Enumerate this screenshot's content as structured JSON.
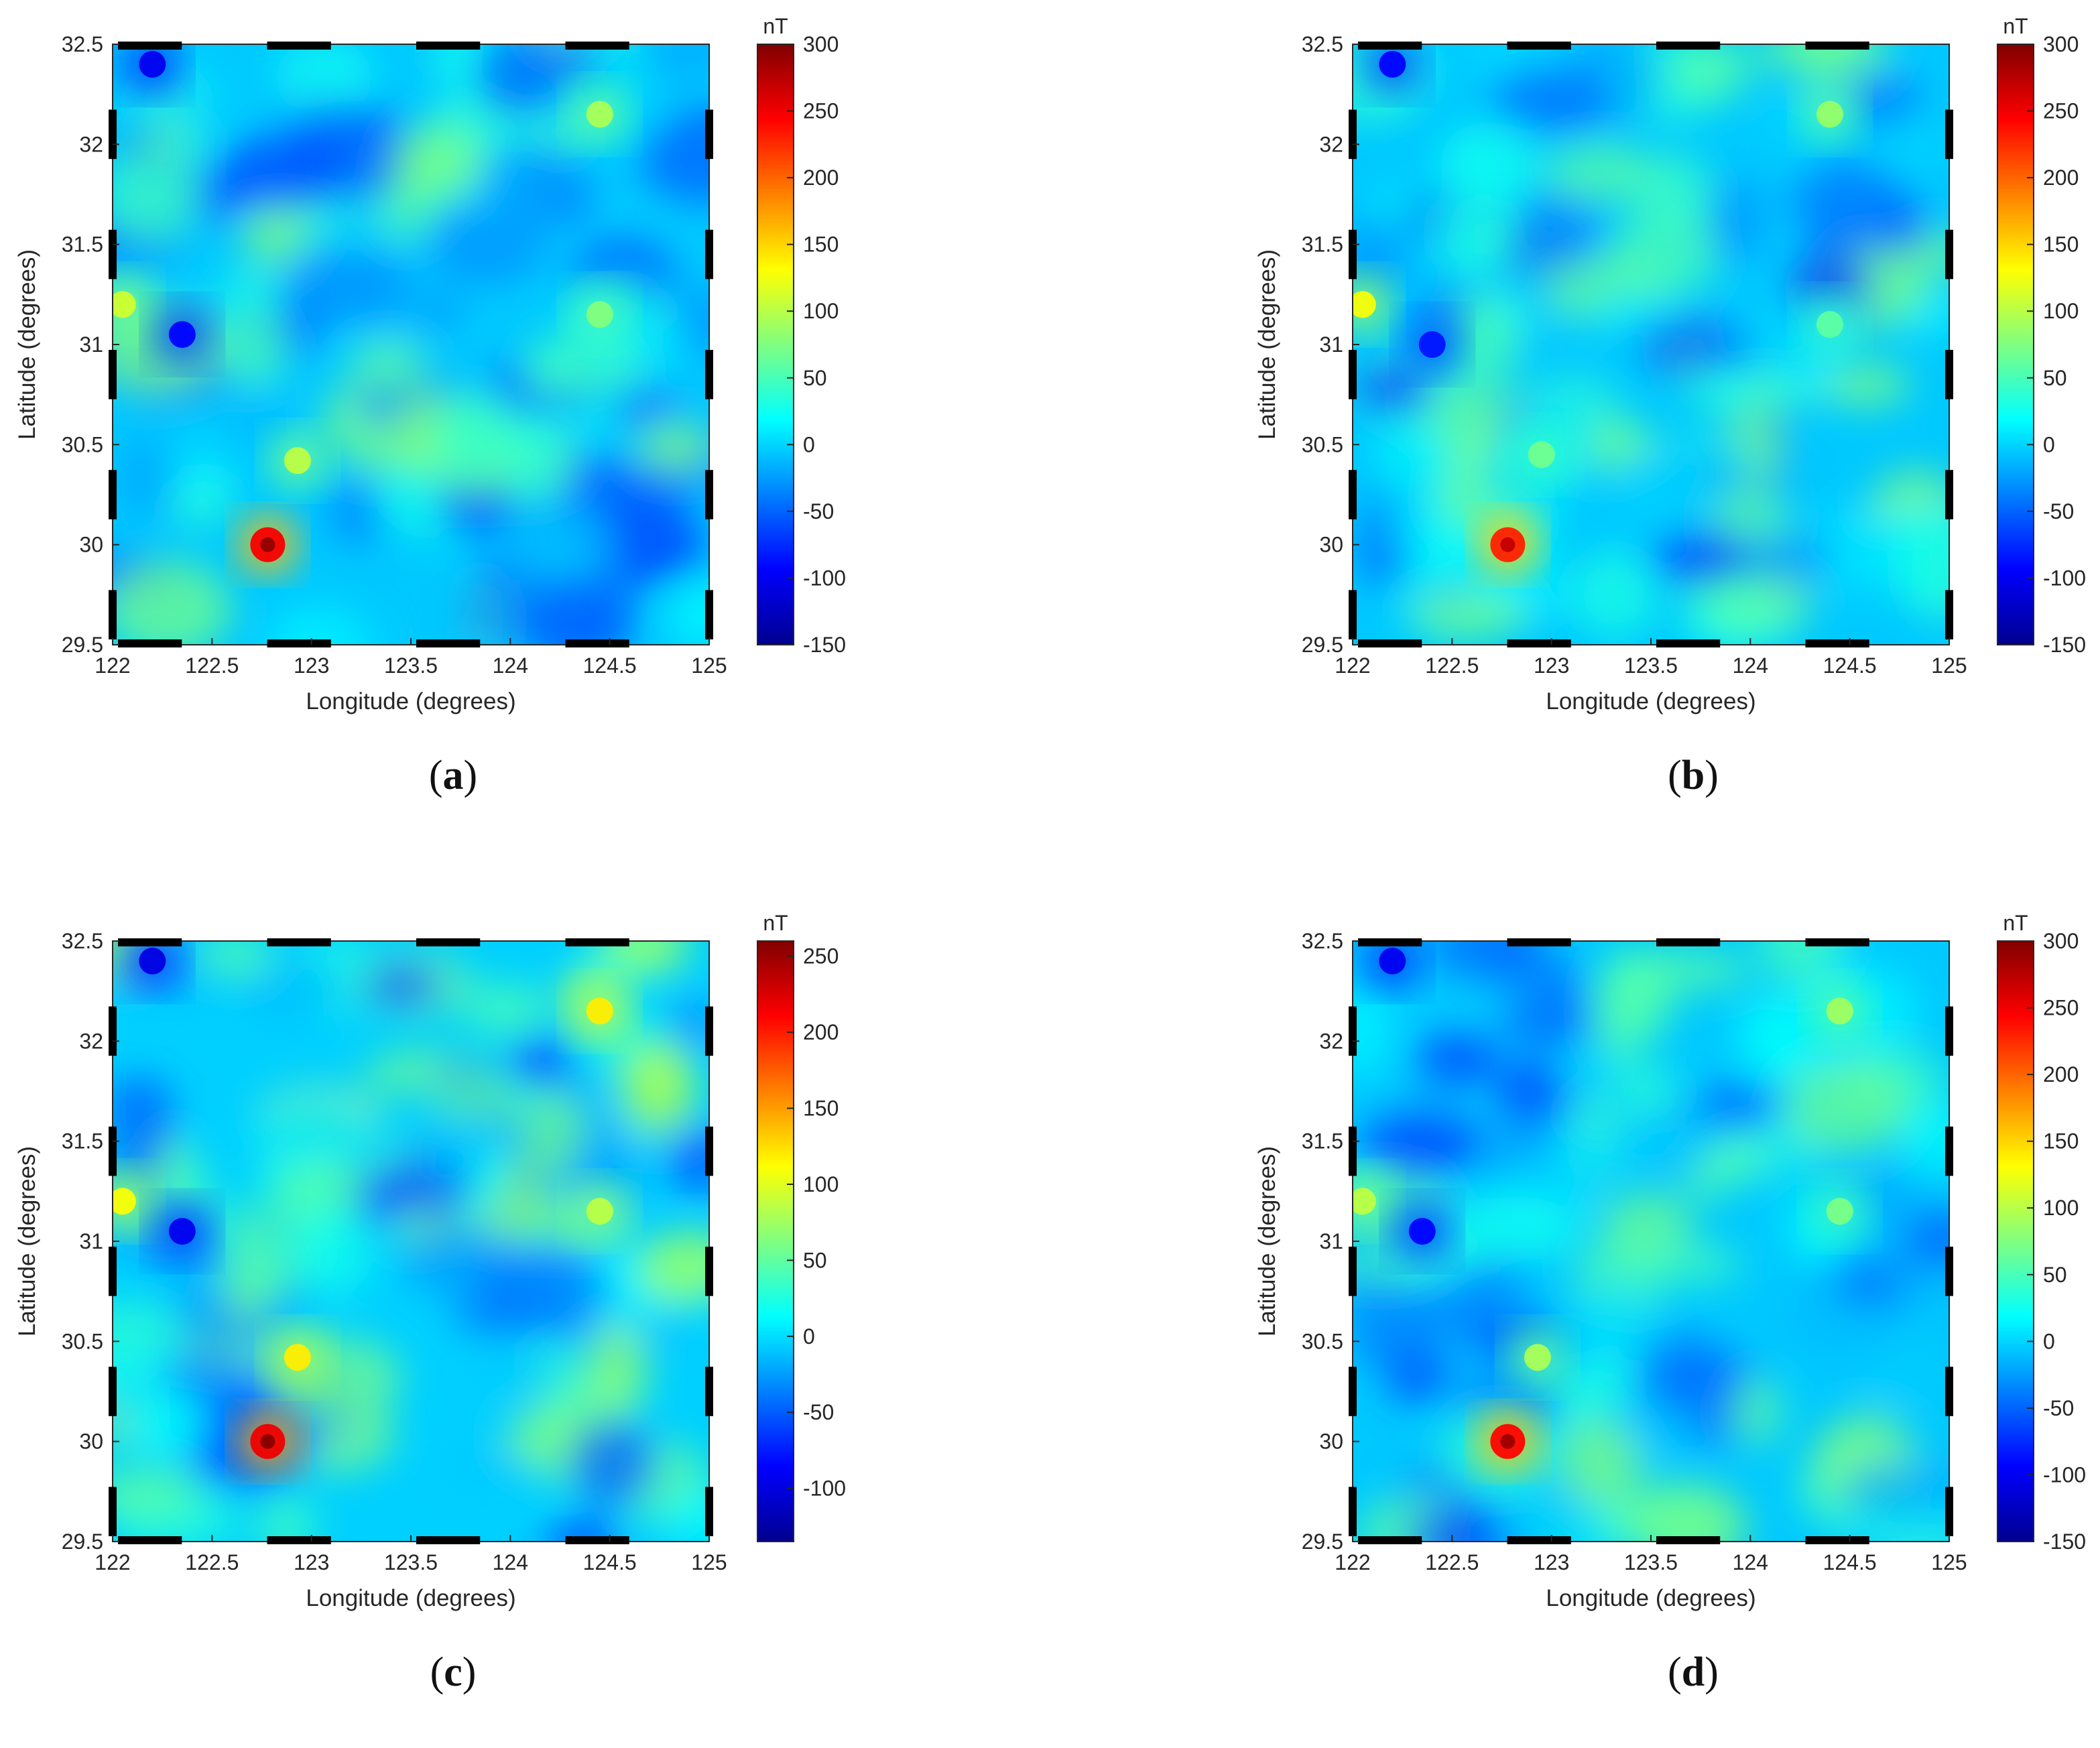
{
  "colormap_stops": [
    "#00008f",
    "#0000ff",
    "#0080ff",
    "#00ffff",
    "#80ff80",
    "#ffff00",
    "#ff8000",
    "#ff0000",
    "#800000"
  ],
  "chart_data": [
    {
      "type": "heatmap",
      "panel_label": "a",
      "xlabel": "Longitude (degrees)",
      "ylabel": "Latitude (degrees)",
      "xlim": [
        122,
        125
      ],
      "ylim": [
        29.5,
        32.5
      ],
      "xticks": [
        "122",
        "122.5",
        "123",
        "123.5",
        "124",
        "124.5",
        "125"
      ],
      "yticks": [
        "29.5",
        "30",
        "30.5",
        "31",
        "31.5",
        "32",
        "32.5"
      ],
      "colorbar": {
        "unit": "nT",
        "range": [
          -150,
          300
        ],
        "ticks": [
          "300",
          "250",
          "200",
          "150",
          "100",
          "50",
          "0",
          "-50",
          "-100",
          "-150"
        ]
      },
      "anomalies": [
        {
          "lon": 122.78,
          "lat": 30.0,
          "value": 290
        },
        {
          "lon": 122.93,
          "lat": 30.42,
          "value": 120
        },
        {
          "lon": 124.45,
          "lat": 31.15,
          "value": 90
        },
        {
          "lon": 124.45,
          "lat": 32.15,
          "value": 110
        },
        {
          "lon": 122.05,
          "lat": 31.2,
          "value": 130
        },
        {
          "lon": 122.35,
          "lat": 31.05,
          "value": -110
        },
        {
          "lon": 122.2,
          "lat": 32.4,
          "value": -120
        }
      ]
    },
    {
      "type": "heatmap",
      "panel_label": "b",
      "xlabel": "Longitude (degrees)",
      "ylabel": "Latitude (degrees)",
      "xlim": [
        122,
        125
      ],
      "ylim": [
        29.5,
        32.5
      ],
      "xticks": [
        "122",
        "122.5",
        "123",
        "123.5",
        "124",
        "124.5",
        "125"
      ],
      "yticks": [
        "29.5",
        "30",
        "30.5",
        "31",
        "31.5",
        "32",
        "32.5"
      ],
      "colorbar": {
        "unit": "nT",
        "range": [
          -150,
          300
        ],
        "ticks": [
          "300",
          "250",
          "200",
          "150",
          "100",
          "50",
          "0",
          "-50",
          "-100",
          "-150"
        ]
      },
      "anomalies": [
        {
          "lon": 122.78,
          "lat": 30.0,
          "value": 270
        },
        {
          "lon": 122.95,
          "lat": 30.45,
          "value": 80
        },
        {
          "lon": 124.4,
          "lat": 31.1,
          "value": 70
        },
        {
          "lon": 124.4,
          "lat": 32.15,
          "value": 100
        },
        {
          "lon": 122.05,
          "lat": 31.2,
          "value": 150
        },
        {
          "lon": 122.4,
          "lat": 31.0,
          "value": -100
        },
        {
          "lon": 122.2,
          "lat": 32.4,
          "value": -110
        }
      ]
    },
    {
      "type": "heatmap",
      "panel_label": "c",
      "xlabel": "Longitude (degrees)",
      "ylabel": "Latitude (degrees)",
      "xlim": [
        122,
        125
      ],
      "ylim": [
        29.5,
        32.5
      ],
      "xticks": [
        "122",
        "122.5",
        "123",
        "123.5",
        "124",
        "124.5",
        "125"
      ],
      "yticks": [
        "29.5",
        "30",
        "30.5",
        "31",
        "31.5",
        "32",
        "32.5"
      ],
      "colorbar": {
        "unit": "nT",
        "range": [
          -135,
          260
        ],
        "ticks": [
          "250",
          "200",
          "150",
          "100",
          "50",
          "0",
          "-50",
          "-100"
        ]
      },
      "anomalies": [
        {
          "lon": 122.78,
          "lat": 30.0,
          "value": 255
        },
        {
          "lon": 122.93,
          "lat": 30.42,
          "value": 140
        },
        {
          "lon": 124.45,
          "lat": 31.15,
          "value": 100
        },
        {
          "lon": 124.45,
          "lat": 32.15,
          "value": 140
        },
        {
          "lon": 122.05,
          "lat": 31.2,
          "value": 130
        },
        {
          "lon": 122.35,
          "lat": 31.05,
          "value": -110
        },
        {
          "lon": 122.2,
          "lat": 32.4,
          "value": -115
        }
      ]
    },
    {
      "type": "heatmap",
      "panel_label": "d",
      "xlabel": "Longitude (degrees)",
      "ylabel": "Latitude (degrees)",
      "xlim": [
        122,
        125
      ],
      "ylim": [
        29.5,
        32.5
      ],
      "xticks": [
        "122",
        "122.5",
        "123",
        "123.5",
        "124",
        "124.5",
        "125"
      ],
      "yticks": [
        "29.5",
        "30",
        "30.5",
        "31",
        "31.5",
        "32",
        "32.5"
      ],
      "colorbar": {
        "unit": "nT",
        "range": [
          -150,
          300
        ],
        "ticks": [
          "300",
          "250",
          "200",
          "150",
          "100",
          "50",
          "0",
          "-50",
          "-100",
          "-150"
        ]
      },
      "anomalies": [
        {
          "lon": 122.78,
          "lat": 30.0,
          "value": 285
        },
        {
          "lon": 122.93,
          "lat": 30.42,
          "value": 110
        },
        {
          "lon": 124.45,
          "lat": 31.15,
          "value": 85
        },
        {
          "lon": 124.45,
          "lat": 32.15,
          "value": 105
        },
        {
          "lon": 122.05,
          "lat": 31.2,
          "value": 120
        },
        {
          "lon": 122.35,
          "lat": 31.05,
          "value": -110
        },
        {
          "lon": 122.2,
          "lat": 32.4,
          "value": -120
        }
      ]
    }
  ]
}
